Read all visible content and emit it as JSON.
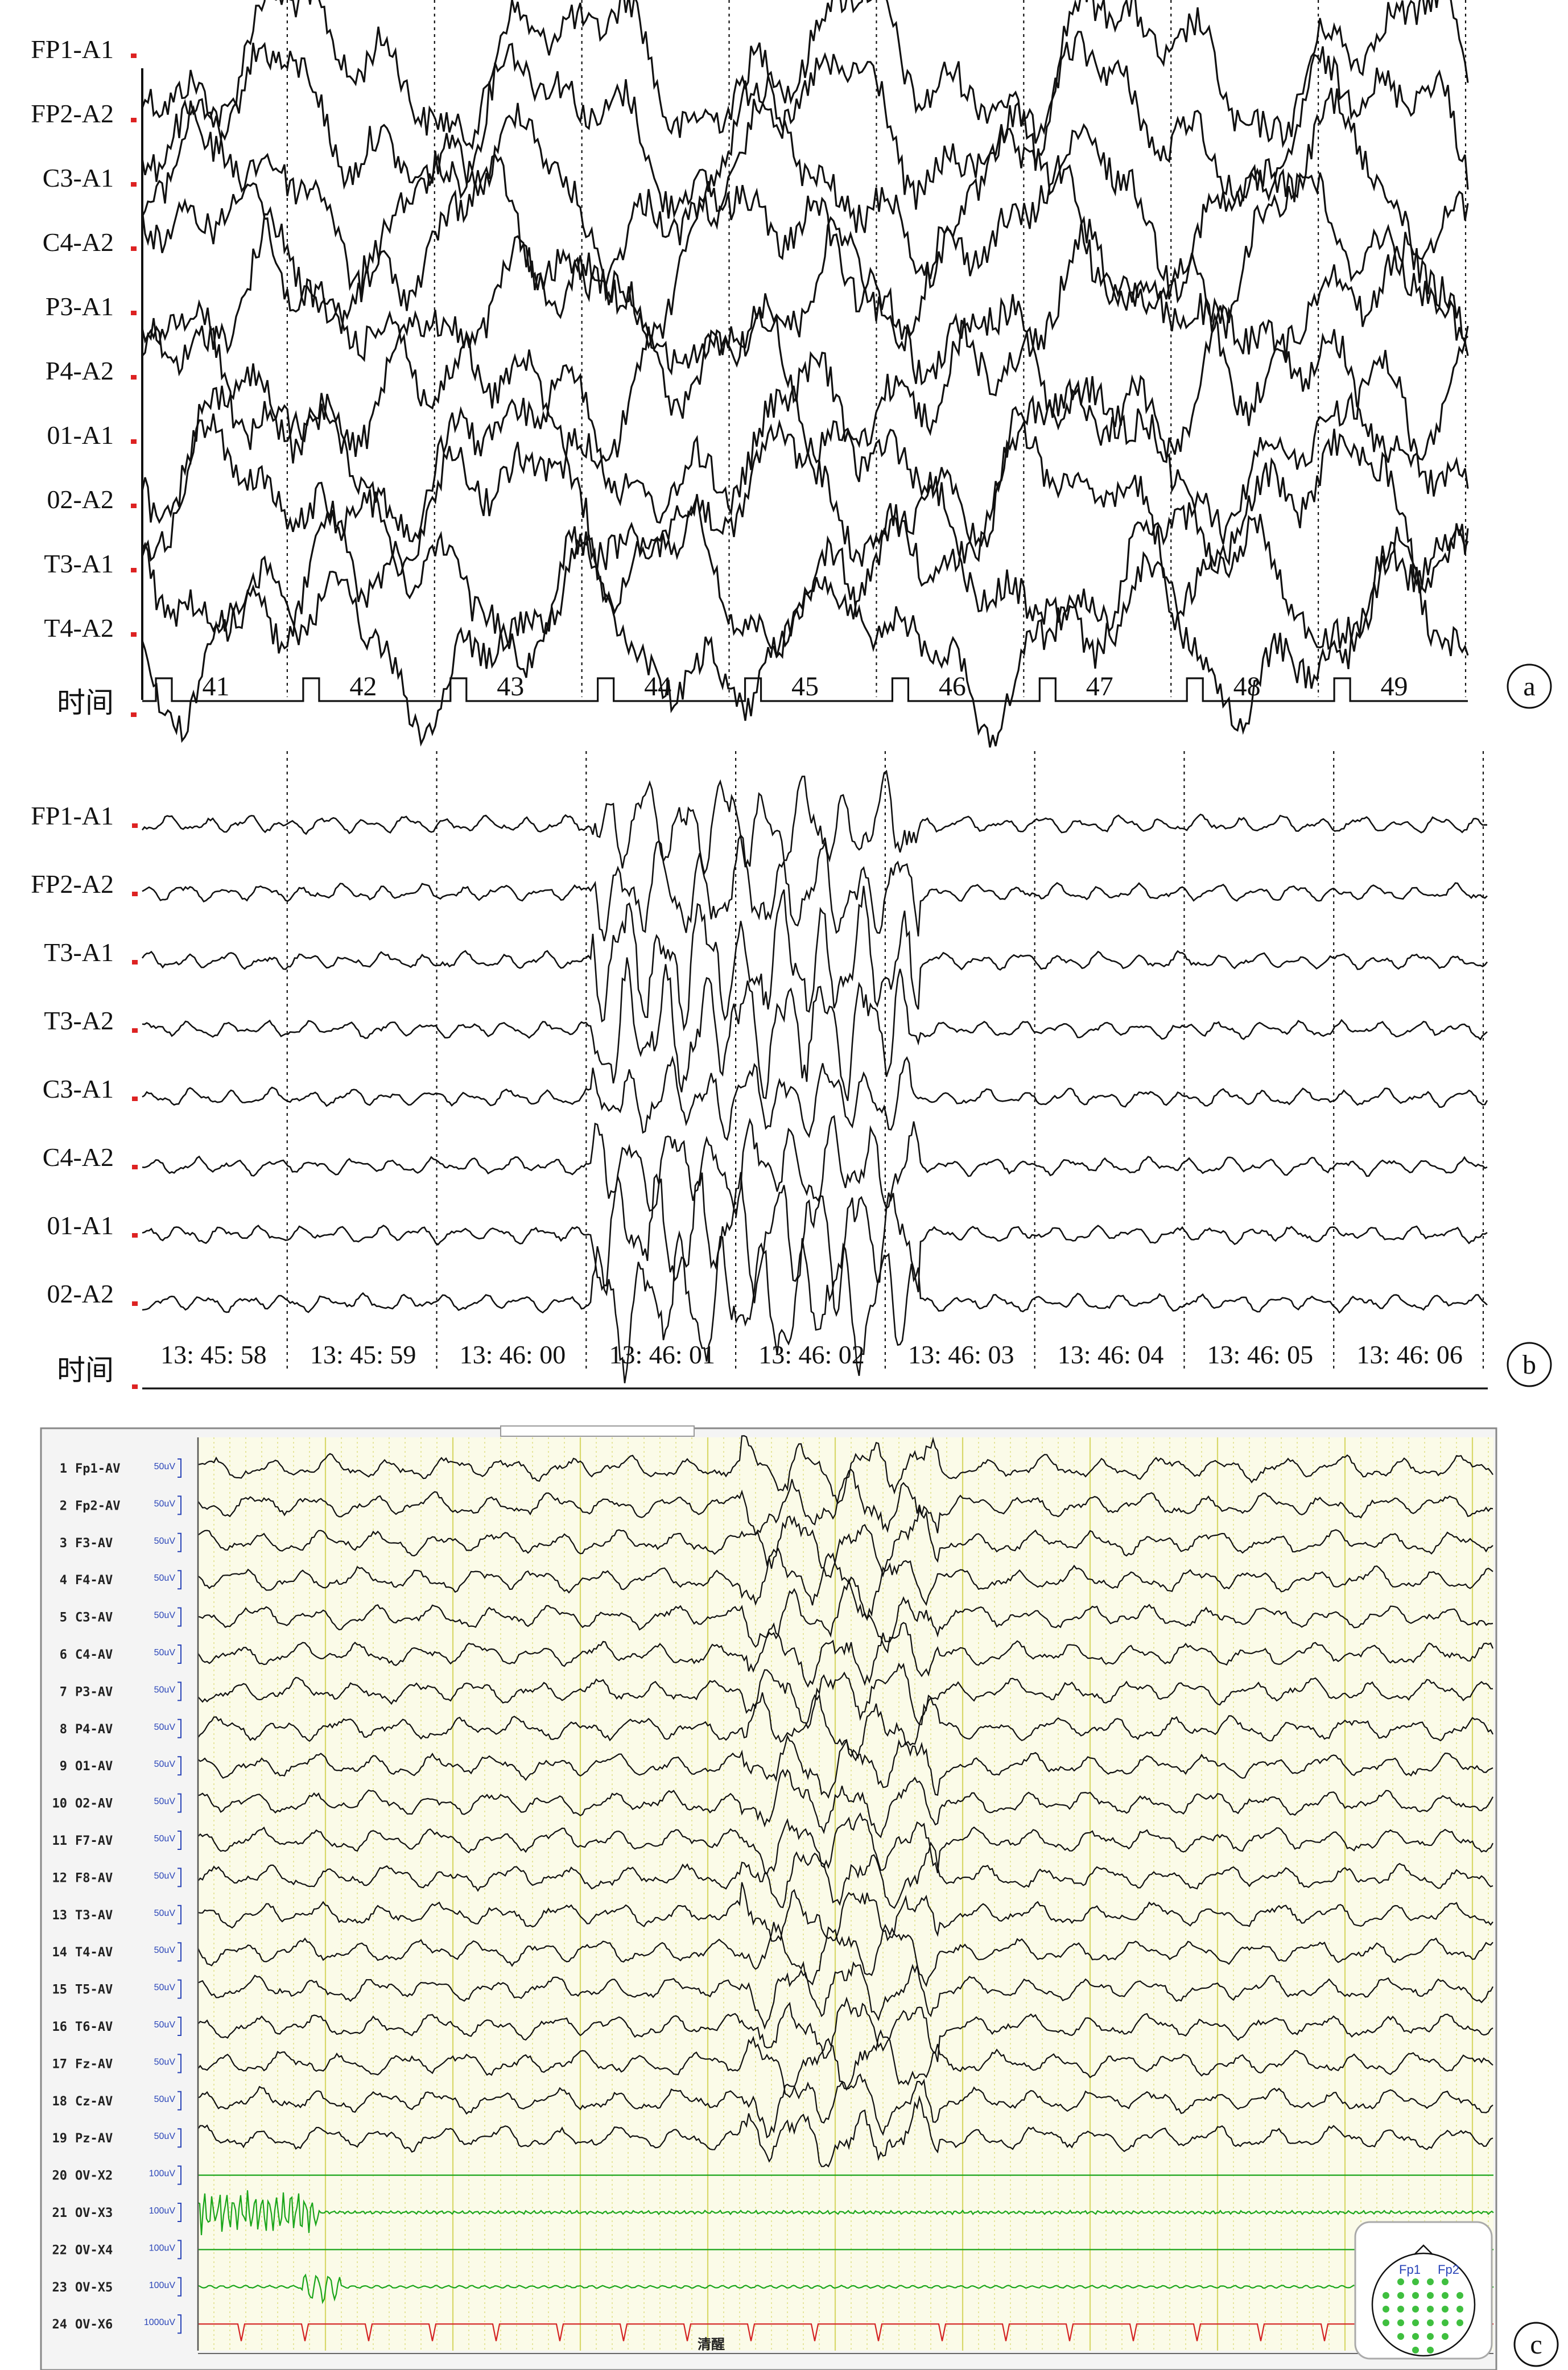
{
  "panel_a": {
    "letter": "a",
    "channels": [
      "FP1-A1",
      "FP2-A2",
      "C3-A1",
      "C4-A2",
      "P3-A1",
      "P4-A2",
      "01-A1",
      "02-A2",
      "T3-A1",
      "T4-A2"
    ],
    "time_label": "时间",
    "ticks": [
      "41",
      "42",
      "43",
      "44",
      "45",
      "46",
      "47",
      "48",
      "49"
    ]
  },
  "panel_b": {
    "letter": "b",
    "channels": [
      "FP1-A1",
      "FP2-A2",
      "T3-A1",
      "T3-A2",
      "C3-A1",
      "C4-A2",
      "01-A1",
      "02-A2"
    ],
    "time_label": "时间",
    "ticks": [
      "13: 45: 58",
      "13: 45: 59",
      "13: 46: 00",
      "13: 46: 01",
      "13: 46: 02",
      "13: 46: 03",
      "13: 46: 04",
      "13: 46: 05",
      "13: 46: 06"
    ]
  },
  "panel_c": {
    "letter": "c",
    "channels": [
      {
        "num": "1",
        "name": "Fp1-AV",
        "scale": "50uV"
      },
      {
        "num": "2",
        "name": "Fp2-AV",
        "scale": "50uV"
      },
      {
        "num": "3",
        "name": "F3-AV",
        "scale": "50uV"
      },
      {
        "num": "4",
        "name": "F4-AV",
        "scale": "50uV"
      },
      {
        "num": "5",
        "name": "C3-AV",
        "scale": "50uV"
      },
      {
        "num": "6",
        "name": "C4-AV",
        "scale": "50uV"
      },
      {
        "num": "7",
        "name": "P3-AV",
        "scale": "50uV"
      },
      {
        "num": "8",
        "name": "P4-AV",
        "scale": "50uV"
      },
      {
        "num": "9",
        "name": "O1-AV",
        "scale": "50uV"
      },
      {
        "num": "10",
        "name": "O2-AV",
        "scale": "50uV"
      },
      {
        "num": "11",
        "name": "F7-AV",
        "scale": "50uV"
      },
      {
        "num": "12",
        "name": "F8-AV",
        "scale": "50uV"
      },
      {
        "num": "13",
        "name": "T3-AV",
        "scale": "50uV"
      },
      {
        "num": "14",
        "name": "T4-AV",
        "scale": "50uV"
      },
      {
        "num": "15",
        "name": "T5-AV",
        "scale": "50uV"
      },
      {
        "num": "16",
        "name": "T6-AV",
        "scale": "50uV"
      },
      {
        "num": "17",
        "name": "Fz-AV",
        "scale": "50uV"
      },
      {
        "num": "18",
        "name": "Cz-AV",
        "scale": "50uV"
      },
      {
        "num": "19",
        "name": "Pz-AV",
        "scale": "50uV"
      },
      {
        "num": "20",
        "name": "OV-X2",
        "scale": "100uV"
      },
      {
        "num": "21",
        "name": "OV-X3",
        "scale": "100uV"
      },
      {
        "num": "22",
        "name": "OV-X4",
        "scale": "100uV"
      },
      {
        "num": "23",
        "name": "OV-X5",
        "scale": "100uV"
      },
      {
        "num": "24",
        "name": "OV-X6",
        "scale": "1000uV"
      }
    ],
    "marker_text": "清醒",
    "head_labels": [
      "Fp1",
      "Fp2"
    ],
    "colors": {
      "grid_bg": "#fbfbe8",
      "grid_line": "#d8d86a",
      "emg": "#1aa51a",
      "ecg": "#d42222",
      "scale": "#2a45b8"
    }
  }
}
